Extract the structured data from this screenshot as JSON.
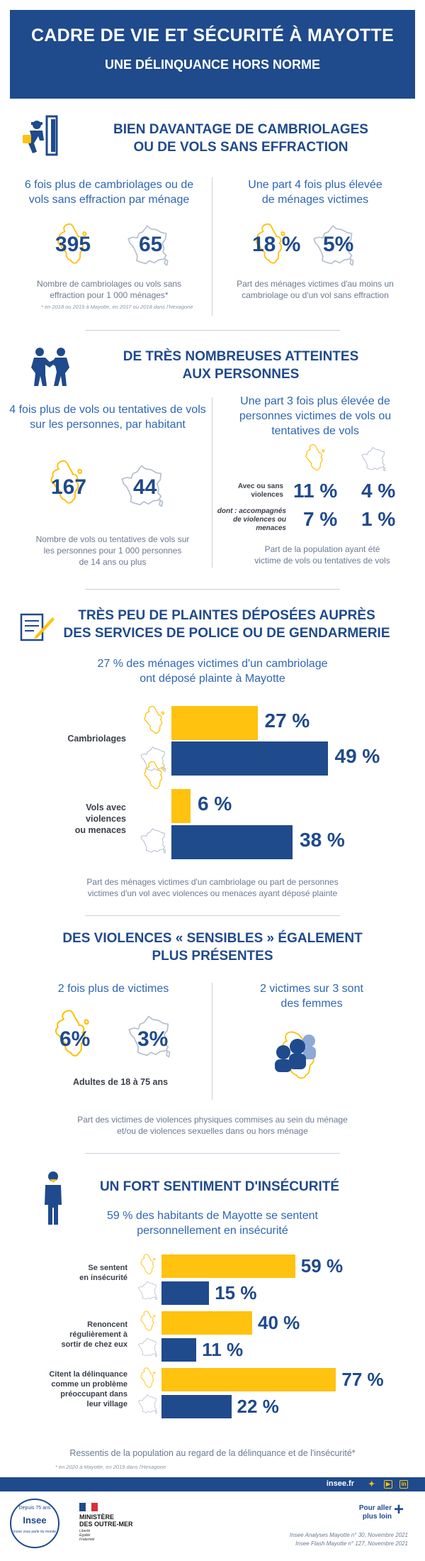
{
  "header": {
    "title": "CADRE DE VIE ET SÉCURITÉ À MAYOTTE",
    "subtitle": "UNE DÉLINQUANCE HORS NORME"
  },
  "s1": {
    "title_l1": "BIEN DAVANTAGE DE CAMBRIOLAGES",
    "title_l2": "OU DE VOLS SANS EFFRACTION",
    "left": {
      "sub_l1": "6 fois plus de cambriolages ou de",
      "sub_l2": "vols sans effraction par ménage",
      "mayotte": "395",
      "france": "65",
      "cap_l1": "Nombre de cambriolages ou vols sans",
      "cap_l2": "effraction pour 1 000 ménages*",
      "note": "* en 2018 ou 2019 à Mayotte, en 2017 ou 2018 dans l'Hexagone"
    },
    "right": {
      "sub_l1": "Une part 4 fois plus élevée",
      "sub_l2": "de ménages victimes",
      "mayotte": "18 %",
      "france": "5%",
      "cap_l1": "Part des ménages victimes d'au moins un",
      "cap_l2": "cambriolage ou d'un vol sans effraction"
    }
  },
  "s2": {
    "title_l1": "DE TRÈS NOMBREUSES ATTEINTES",
    "title_l2": "AUX PERSONNES",
    "left": {
      "sub_l1": "4 fois plus de vols ou tentatives de vols",
      "sub_l2": "sur les personnes, par habitant",
      "mayotte": "167",
      "france": "44",
      "cap_l1": "Nombre de vols ou tentatives de vols sur",
      "cap_l2": "les personnes pour 1 000 personnes",
      "cap_l3": "de 14 ans ou plus"
    },
    "right": {
      "sub_l1": "Une part 3 fois plus élevée de",
      "sub_l2": "personnes victimes de vols ou",
      "sub_l3": "tentatives de vols",
      "row1_l1": "Avec ou sans",
      "row1_l2": "violences",
      "row1_m": "11 %",
      "row1_f": "4 %",
      "row2_l1": "dont : accompagnés",
      "row2_l2": "de violences ou",
      "row2_l3": "menaces",
      "row2_m": "7 %",
      "row2_f": "1 %",
      "cap_l1": "Part de la population ayant été",
      "cap_l2": "victime de vols ou tentatives de vols"
    }
  },
  "s3": {
    "title_l1": "TRÈS PEU DE PLAINTES DÉPOSÉES AUPRÈS",
    "title_l2": "DES SERVICES DE POLICE OU DE GENDARMERIE",
    "sub_l1": "27 % des ménages victimes d'un cambriolage",
    "sub_l2": "ont déposé plainte à Mayotte",
    "group1_label": "Cambriolages",
    "group1_mayotte": 27,
    "group1_france": 49,
    "group1_mayotte_txt": "27 %",
    "group1_france_txt": "49 %",
    "group2_l1": "Vols avec",
    "group2_l2": "violences",
    "group2_l3": "ou menaces",
    "group2_mayotte": 6,
    "group2_france": 38,
    "group2_mayotte_txt": "6 %",
    "group2_france_txt": "38 %",
    "cap_l1": "Part des ménages victimes d'un cambriolage ou part de personnes",
    "cap_l2": "victimes d'un vol avec violences ou menaces ayant déposé plainte"
  },
  "s4": {
    "title_l1": "DES VIOLENCES « SENSIBLES » ÉGALEMENT",
    "title_l2": "PLUS PRÉSENTES",
    "left": {
      "sub": "2 fois plus de victimes",
      "mayotte": "6%",
      "france": "3%",
      "label": "Adultes de 18 à 75 ans"
    },
    "right": {
      "sub_l1": "2 victimes sur 3 sont",
      "sub_l2": "des femmes"
    },
    "cap_l1": "Part des victimes de violences physiques commises au sein du ménage",
    "cap_l2": "et/ou de violences sexuelles dans ou hors ménage"
  },
  "s5": {
    "title": "UN FORT SENTIMENT D'INSÉCURITÉ",
    "sub_l1": "59 % des habitants de Mayotte se sentent",
    "sub_l2": "personnellement en insécurité",
    "rows": [
      {
        "l1": "Se sentent",
        "l2": "en insécurité",
        "l3": "",
        "l4": "",
        "mayotte": 59,
        "france": 15,
        "m_txt": "59 %",
        "f_txt": "15 %"
      },
      {
        "l1": "Renoncent",
        "l2": "régulièrement à",
        "l3": "sortir de chez eux",
        "l4": "",
        "mayotte": 40,
        "france": 11,
        "m_txt": "40 %",
        "f_txt": "11 %"
      },
      {
        "l1": "Citent la délinquance",
        "l2": "comme un problème",
        "l3": "préoccupant dans",
        "l4": "leur village",
        "mayotte": 77,
        "france": 22,
        "m_txt": "77 %",
        "f_txt": "22 %"
      }
    ],
    "cap": "Ressentis de la population au regard de la délinquance et de l'insécurité*",
    "note": "* en 2020 à Mayotte, en 2019 dans l'Hexagone"
  },
  "footer": {
    "url": "insee.fr",
    "insee_badge_l1": "Depuis 75 ans",
    "insee_badge_l2": "Insee",
    "insee_badge_l3": "Insee vous parle du monde",
    "ministry_l1": "MINISTÈRE",
    "ministry_l2": "DES OUTRE-MER",
    "ministry_l3": "Liberté",
    "ministry_l4": "Égalité",
    "ministry_l5": "Fraternité",
    "more_l1": "Pour aller",
    "more_l2": "plus loin",
    "ref1": "Insee Analyses Mayotte n° 30, Novembre 2021",
    "ref2": "Insee Flash Mayotte n° 127, Novembre 2021"
  },
  "colors": {
    "navy": "#1f4a8c",
    "yellow": "#ffc20e",
    "grey": "#6b7a92"
  },
  "icons": [
    "burglar-icon",
    "fight-icon",
    "complaint-form-icon",
    "women-victims-icon",
    "worried-person-icon",
    "mayotte-map-icon",
    "france-map-icon"
  ]
}
